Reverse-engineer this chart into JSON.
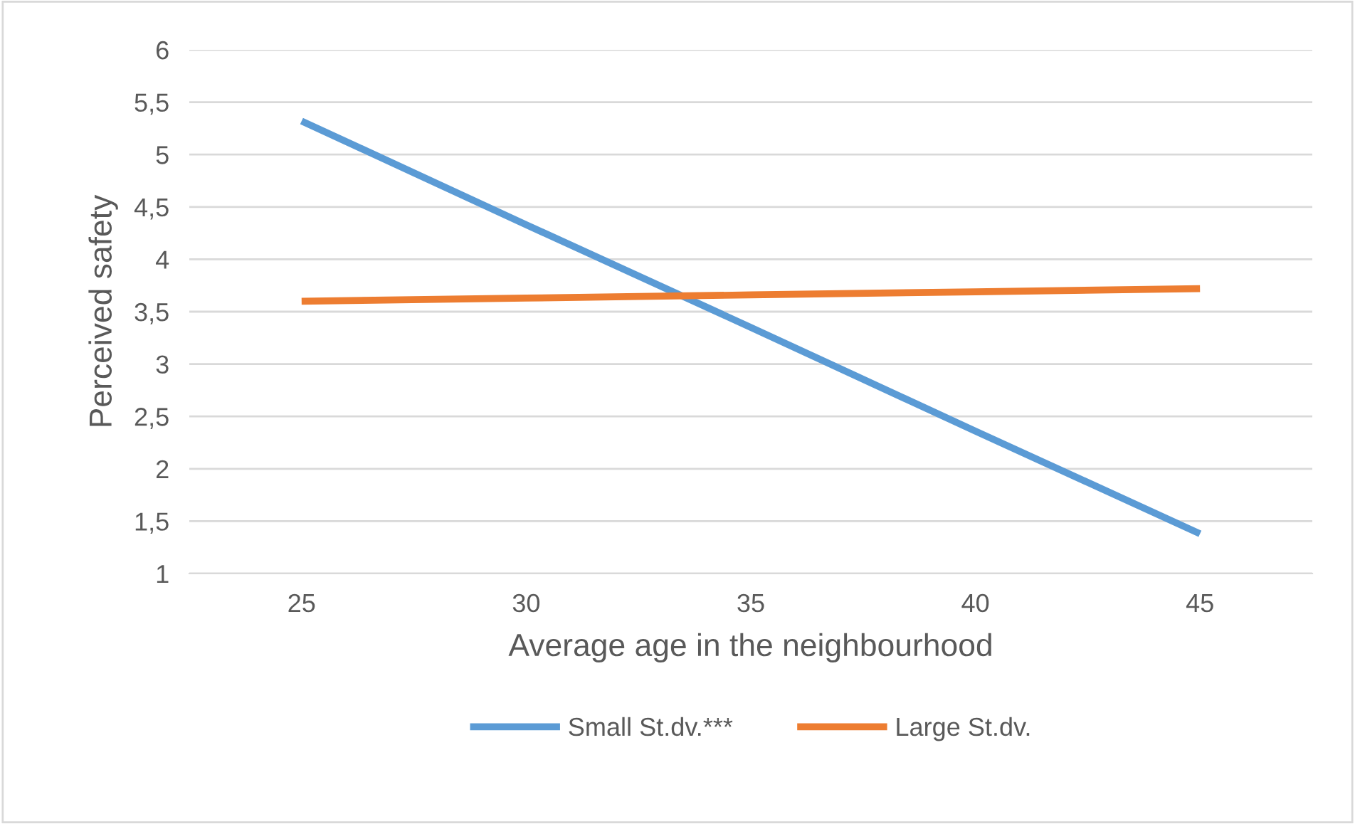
{
  "chart_data": {
    "type": "line",
    "xlabel": "Average age in the neighbourhood",
    "ylabel": "Perceived safety",
    "categories": [
      "25",
      "30",
      "35",
      "40",
      "45"
    ],
    "series": [
      {
        "name": "Small St.dv.***",
        "color": "#5b9bd5",
        "values": [
          5.32,
          4.33,
          3.35,
          2.36,
          1.38
        ]
      },
      {
        "name": "Large St.dv.",
        "color": "#ed7d31",
        "values": [
          3.6,
          3.63,
          3.66,
          3.69,
          3.72
        ]
      }
    ],
    "ylim": [
      1,
      6
    ],
    "yticks": [
      1,
      {
        "value": 1.5,
        "label": "1,5"
      },
      2,
      {
        "value": 2.5,
        "label": "2,5"
      },
      3,
      {
        "value": 3.5,
        "label": "3,5"
      },
      4,
      {
        "value": 4.5,
        "label": "4,5"
      },
      5,
      {
        "value": 5.5,
        "label": "5,5"
      },
      6
    ],
    "grid": "y",
    "legend": "bottom",
    "marker": "none",
    "line_style": "solid"
  }
}
